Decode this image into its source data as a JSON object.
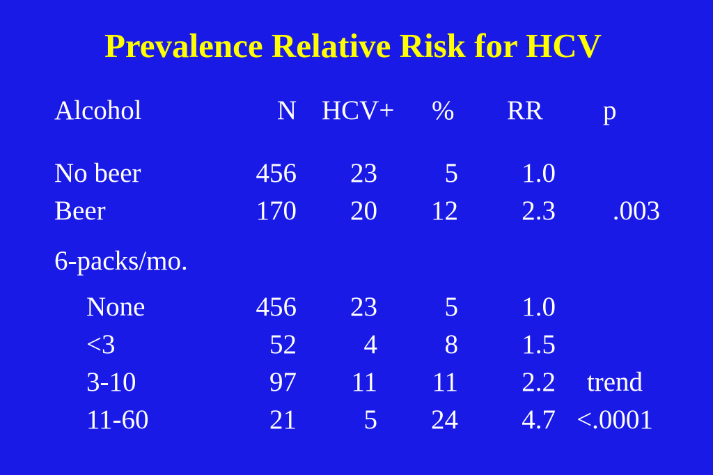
{
  "colors": {
    "background": "#1a1ae6",
    "title": "#ffff00",
    "text": "#ffffff"
  },
  "title": "Prevalence Relative Risk for HCV",
  "headers": {
    "label": "Alcohol",
    "n": "N",
    "hcv": "HCV+",
    "pct": "%",
    "rr": "RR",
    "p": "p"
  },
  "rows_beer": [
    {
      "label": "No beer",
      "n": "456",
      "hcv": "23",
      "pct": "5",
      "rr": "1.0",
      "p": ""
    },
    {
      "label": "Beer",
      "n": "170",
      "hcv": "20",
      "pct": "12",
      "rr": "2.3",
      "p": ".003"
    }
  ],
  "section_label": "6-packs/mo.",
  "rows_packs": [
    {
      "label": "None",
      "n": "456",
      "hcv": "23",
      "pct": "5",
      "rr": "1.0",
      "p": ""
    },
    {
      "label": "<3",
      "n": "52",
      "hcv": "4",
      "pct": "8",
      "rr": "1.5",
      "p": ""
    },
    {
      "label": "3-10",
      "n": "97",
      "hcv": "11",
      "pct": "11",
      "rr": "2.2",
      "p": "trend"
    },
    {
      "label": "11-60",
      "n": "21",
      "hcv": "5",
      "pct": "24",
      "rr": "4.7",
      "p": "<.0001"
    }
  ]
}
